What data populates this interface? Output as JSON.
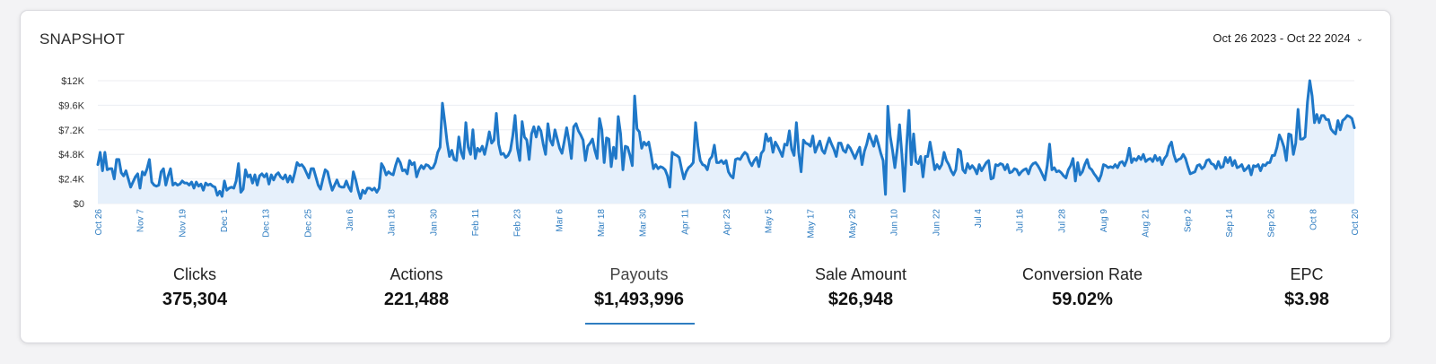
{
  "card": {
    "title": "SNAPSHOT",
    "date_range": "Oct 26 2023 - Oct 22 2024",
    "date_range_icon": "chevron-down-icon"
  },
  "chart_data": {
    "type": "area",
    "line_color": "#1f78c8",
    "fill_color": "#e6f0fb",
    "ylim": [
      0,
      12000
    ],
    "y_ticks": [
      "$0",
      "$2.4K",
      "$4.8K",
      "$7.2K",
      "$9.6K",
      "$12K"
    ],
    "x_ticks": [
      "Oct 26",
      "Nov 7",
      "Nov 19",
      "Dec 1",
      "Dec 13",
      "Dec 25",
      "Jan 6",
      "Jan 18",
      "Jan 30",
      "Feb 11",
      "Feb 23",
      "Mar 6",
      "Mar 18",
      "Mar 30",
      "Apr 11",
      "Apr 23",
      "May 5",
      "May 17",
      "May 29",
      "Jun 10",
      "Jun 22",
      "Jul 4",
      "Jul 16",
      "Jul 28",
      "Aug 9",
      "Aug 21",
      "Sep 2",
      "Sep 14",
      "Sep 26",
      "Oct 8",
      "Oct 20"
    ],
    "values": [
      3800,
      5000,
      3200,
      5000,
      3300,
      3400,
      3400,
      2400,
      4300,
      4300,
      3000,
      2700,
      3200,
      2400,
      1600,
      2100,
      2600,
      2900,
      1500,
      3100,
      2800,
      3400,
      4300,
      2100,
      1800,
      1700,
      1800,
      3100,
      3400,
      1800,
      2700,
      3400,
      1800,
      2000,
      1800,
      1900,
      2200,
      2000,
      2000,
      1800,
      2100,
      1500,
      2100,
      1700,
      1900,
      1300,
      2000,
      1800,
      1900,
      1700,
      1600,
      800,
      1200,
      700,
      2200,
      1300,
      1500,
      1600,
      1500,
      2200,
      3900,
      1100,
      1400,
      3300,
      2600,
      2800,
      2000,
      2800,
      1800,
      2700,
      2900,
      2600,
      2900,
      1900,
      2800,
      2300,
      2800,
      3000,
      2600,
      2400,
      2800,
      2100,
      2700,
      2100,
      3000,
      4000,
      3700,
      3800,
      3500,
      3000,
      2500,
      3400,
      3400,
      2600,
      1800,
      1400,
      2400,
      3300,
      3100,
      2100,
      1300,
      1800,
      2300,
      1700,
      1600,
      1600,
      2200,
      1600,
      1200,
      3100,
      2300,
      1300,
      500,
      1300,
      1000,
      1500,
      1500,
      1300,
      1500,
      1100,
      1500,
      3900,
      3500,
      2800,
      3100,
      2900,
      2800,
      3700,
      4400,
      4000,
      3200,
      3300,
      2900,
      4200,
      3800,
      4000,
      2600,
      3300,
      3700,
      3400,
      3800,
      3700,
      3400,
      3500,
      4000,
      5000,
      5500,
      9800,
      8000,
      6000,
      4600,
      5200,
      4300,
      4200,
      6500,
      5000,
      4400,
      7900,
      5500,
      4800,
      7200,
      4400,
      5400,
      5100,
      5600,
      4800,
      5800,
      7000,
      5900,
      6200,
      8800,
      5800,
      4800,
      4900,
      4500,
      4700,
      5200,
      6600,
      8600,
      5400,
      4200,
      8000,
      6500,
      6200,
      4300,
      6800,
      7500,
      6500,
      7500,
      7100,
      5800,
      4800,
      7800,
      6200,
      5700,
      7200,
      6300,
      5400,
      4900,
      6100,
      7400,
      6100,
      4400,
      7500,
      7800,
      7100,
      6700,
      6200,
      4200,
      5600,
      5900,
      6300,
      5200,
      4400,
      8300,
      7200,
      4000,
      6400,
      6300,
      3600,
      5500,
      4400,
      8500,
      6800,
      3300,
      5600,
      5500,
      4700,
      3700,
      10500,
      7300,
      7000,
      5400,
      6000,
      5700,
      6000,
      4800,
      3400,
      3800,
      3400,
      3600,
      3500,
      3300,
      2700,
      1600,
      5000,
      4800,
      4700,
      4500,
      3400,
      2400,
      3100,
      3500,
      3700,
      4000,
      7900,
      5600,
      4200,
      3800,
      3700,
      3300,
      4300,
      4600,
      5700,
      4000,
      4000,
      4200,
      3900,
      4200,
      3100,
      2700,
      2500,
      4300,
      4400,
      4300,
      4700,
      5000,
      4800,
      4100,
      3700,
      4200,
      4500,
      3600,
      4900,
      5200,
      6800,
      6100,
      6400,
      5000,
      6000,
      5600,
      5100,
      4600,
      5800,
      5700,
      7100,
      5300,
      4700,
      7900,
      5000,
      3100,
      6200,
      5900,
      5800,
      5600,
      6600,
      5000,
      5600,
      6100,
      5200,
      4900,
      5700,
      6400,
      5800,
      5300,
      4600,
      5900,
      5900,
      5200,
      5000,
      5700,
      5400,
      4900,
      4400,
      5000,
      5500,
      3800,
      5100,
      5800,
      6800,
      6200,
      5600,
      6600,
      5800,
      4900,
      4200,
      900,
      9500,
      6600,
      5200,
      3500,
      5300,
      7700,
      4800,
      1200,
      5600,
      9100,
      3800,
      6800,
      4100,
      3900,
      4600,
      2600,
      4600,
      4600,
      6000,
      4700,
      3300,
      3800,
      3400,
      3800,
      5000,
      4200,
      3800,
      3200,
      2800,
      3300,
      5300,
      5100,
      3300,
      3000,
      3900,
      3400,
      3700,
      3400,
      2900,
      3800,
      3200,
      3600,
      4000,
      4200,
      2400,
      2500,
      3800,
      3700,
      3900,
      3800,
      3300,
      3800,
      3000,
      3100,
      3400,
      3300,
      2800,
      3100,
      3300,
      3400,
      2900,
      3600,
      3900,
      4000,
      3700,
      3300,
      2800,
      2300,
      3700,
      5800,
      3300,
      3500,
      3100,
      3200,
      3000,
      2700,
      2500,
      3300,
      3700,
      4400,
      2200,
      4000,
      2800,
      3100,
      3800,
      4300,
      3500,
      3300,
      2900,
      2600,
      2200,
      2800,
      3800,
      3700,
      3500,
      3600,
      3500,
      3800,
      3500,
      4000,
      4100,
      3700,
      4300,
      5400,
      4000,
      4400,
      4200,
      4600,
      4300,
      4800,
      4100,
      4300,
      4400,
      4100,
      4700,
      4200,
      4500,
      3800,
      4400,
      4700,
      5600,
      6000,
      4800,
      4100,
      4300,
      4400,
      4800,
      4400,
      3600,
      2900,
      3000,
      3100,
      3700,
      3800,
      3400,
      3600,
      4200,
      4300,
      3900,
      3800,
      3400,
      4100,
      3500,
      3600,
      4500,
      4000,
      4500,
      3700,
      4200,
      3500,
      3600,
      3800,
      3200,
      3400,
      3700,
      2800,
      3700,
      3600,
      3800,
      3200,
      3800,
      3700,
      4000,
      4000,
      4700,
      4700,
      5500,
      6700,
      6200,
      5500,
      4200,
      6800,
      6700,
      4800,
      5900,
      9200,
      6300,
      6300,
      6500,
      9900,
      12000,
      10500,
      7900,
      8700,
      7900,
      8600,
      8600,
      8200,
      8200,
      7300,
      7000,
      6800,
      8100,
      7200,
      8100,
      8300,
      8600,
      8500,
      8300,
      7400
    ]
  },
  "metrics": [
    {
      "label": "Clicks",
      "value": "375,304"
    },
    {
      "label": "Actions",
      "value": "221,488"
    },
    {
      "label": "Payouts",
      "value": "$1,493,996"
    },
    {
      "label": "Sale Amount",
      "value": "$26,948"
    },
    {
      "label": "Conversion Rate",
      "value": "59.02%"
    },
    {
      "label": "EPC",
      "value": "$3.98"
    }
  ],
  "active_metric": "Payouts"
}
